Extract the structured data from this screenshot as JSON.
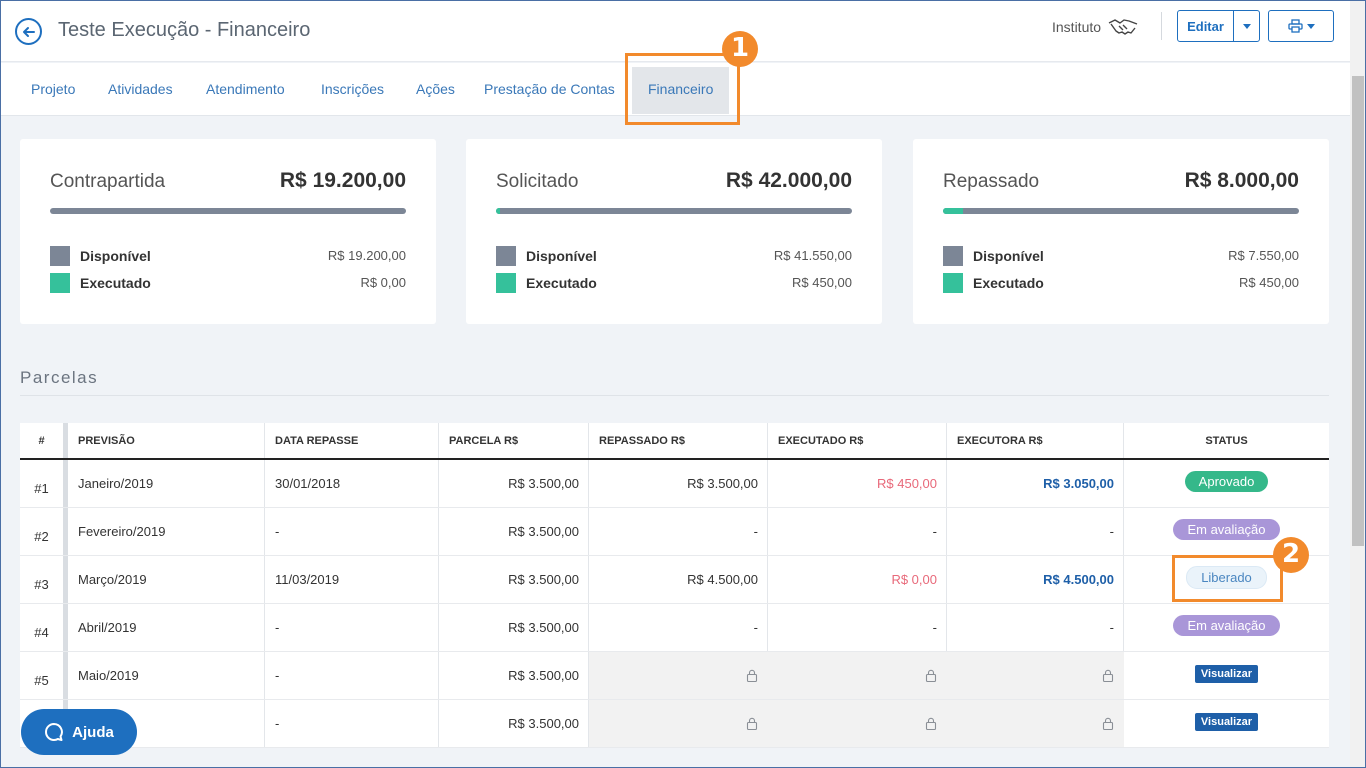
{
  "header": {
    "title": "Teste Execução - Financeiro",
    "org_label": "Instituto",
    "edit_label": "Editar"
  },
  "tabs": [
    {
      "label": "Projeto"
    },
    {
      "label": "Atividades"
    },
    {
      "label": "Atendimento"
    },
    {
      "label": "Inscrições"
    },
    {
      "label": "Ações"
    },
    {
      "label": "Prestação de Contas"
    },
    {
      "label": "Financeiro"
    }
  ],
  "annotations": {
    "one": "1",
    "two": "2"
  },
  "cards": [
    {
      "title": "Contrapartida",
      "total": "R$ 19.200,00",
      "executed_fraction": 0.0,
      "legend": [
        {
          "label": "Disponível",
          "value": "R$ 19.200,00"
        },
        {
          "label": "Executado",
          "value": "R$ 0,00"
        }
      ]
    },
    {
      "title": "Solicitado",
      "total": "R$ 42.000,00",
      "executed_fraction": 0.0107,
      "legend": [
        {
          "label": "Disponível",
          "value": "R$ 41.550,00"
        },
        {
          "label": "Executado",
          "value": "R$ 450,00"
        }
      ]
    },
    {
      "title": "Repassado",
      "total": "R$ 8.000,00",
      "executed_fraction": 0.056,
      "legend": [
        {
          "label": "Disponível",
          "value": "R$ 7.550,00"
        },
        {
          "label": "Executado",
          "value": "R$ 450,00"
        }
      ]
    }
  ],
  "colors": {
    "disponivel": "#7c8696",
    "executado": "#35c19b",
    "accent": "#1e6fbf",
    "highlight": "#f28a2c"
  },
  "parcelas": {
    "title": "Parcelas",
    "columns": [
      "#",
      "PREVISÃO",
      "DATA REPASSE",
      "PARCELA R$",
      "REPASSADO R$",
      "EXECUTADO R$",
      "EXECUTORA R$",
      "STATUS"
    ],
    "rows": [
      {
        "num": "#1",
        "previsao": "Janeiro/2019",
        "data": "30/01/2018",
        "parcela": "R$ 3.500,00",
        "repassado": "R$ 3.500,00",
        "executado": "R$ 450,00",
        "executora": "R$ 3.050,00",
        "status": "Aprovado",
        "status_type": "green"
      },
      {
        "num": "#2",
        "previsao": "Fevereiro/2019",
        "data": "-",
        "parcela": "R$ 3.500,00",
        "repassado": "-",
        "executado": "-",
        "executora": "-",
        "status": "Em avaliação",
        "status_type": "purple"
      },
      {
        "num": "#3",
        "previsao": "Março/2019",
        "data": "11/03/2019",
        "parcela": "R$ 3.500,00",
        "repassado": "R$ 4.500,00",
        "executado": "R$ 0,00",
        "executora": "R$ 4.500,00",
        "status": "Liberado",
        "status_type": "light"
      },
      {
        "num": "#4",
        "previsao": "Abril/2019",
        "data": "-",
        "parcela": "R$ 3.500,00",
        "repassado": "-",
        "executado": "-",
        "executora": "-",
        "status": "Em avaliação",
        "status_type": "purple"
      },
      {
        "num": "#5",
        "previsao": "Maio/2019",
        "data": "-",
        "parcela": "R$ 3.500,00",
        "repassado": "",
        "executado": "",
        "executora": "",
        "status": "Visualizar",
        "status_type": "button",
        "locked": true
      },
      {
        "num": "",
        "previsao": "19",
        "data": "-",
        "parcela": "R$ 3.500,00",
        "repassado": "",
        "executado": "",
        "executora": "",
        "status": "Visualizar",
        "status_type": "button",
        "locked": true
      }
    ]
  },
  "help": {
    "label": "Ajuda"
  }
}
